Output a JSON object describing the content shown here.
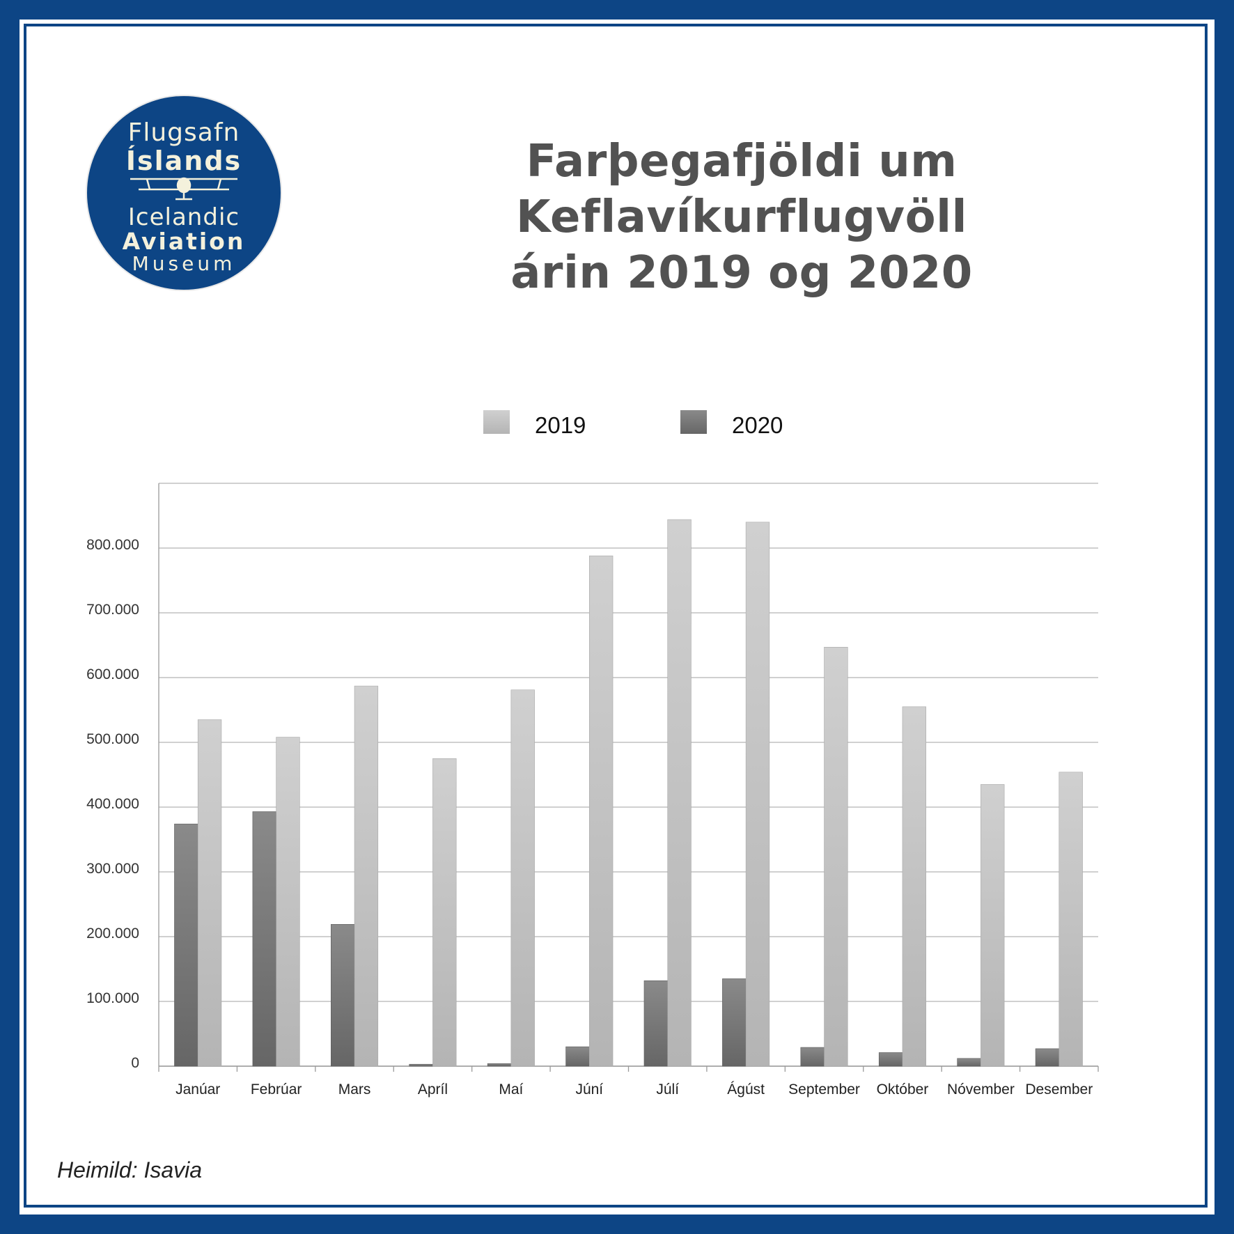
{
  "logo": {
    "line1": "Flugsafn",
    "line2": "Íslands",
    "line3": "Icelandic",
    "line4": "Aviation",
    "line5": "Museum"
  },
  "title": {
    "line1": "Farþegafjöldi um Keflavíkurflugvöll",
    "line2": "árin 2019 og 2020"
  },
  "source": "Heimild: Isavia",
  "colors": {
    "frame": "#0d4585",
    "series_2019": "#c4c4c4",
    "series_2020": "#747474",
    "gridline": "#b5b5b5",
    "title": "#525252"
  },
  "chart_data": {
    "type": "bar",
    "categories": [
      "Janúar",
      "Febrúar",
      "Mars",
      "Apríl",
      "Maí",
      "Júní",
      "Júlí",
      "Ágúst",
      "September",
      "Október",
      "Nóvember",
      "Desember"
    ],
    "series": [
      {
        "name": "2020",
        "values": [
          374000,
          393000,
          219000,
          3000,
          4000,
          30000,
          132000,
          135000,
          29000,
          21000,
          12000,
          27000
        ]
      },
      {
        "name": "2019",
        "values": [
          535000,
          508000,
          587000,
          475000,
          581000,
          788000,
          844000,
          840000,
          647000,
          555000,
          435000,
          454000
        ]
      }
    ],
    "legend_order": [
      "2019",
      "2020"
    ],
    "yticks": [
      0,
      100000,
      200000,
      300000,
      400000,
      500000,
      600000,
      700000,
      800000
    ],
    "ytick_labels": [
      "0",
      "100.000",
      "200.000",
      "300.000",
      "400.000",
      "500.000",
      "600.000",
      "700.000",
      "800.000"
    ],
    "ylim": [
      0,
      900000
    ],
    "grid": true,
    "legend_position": "top-center",
    "xlabel": "",
    "ylabel": ""
  }
}
